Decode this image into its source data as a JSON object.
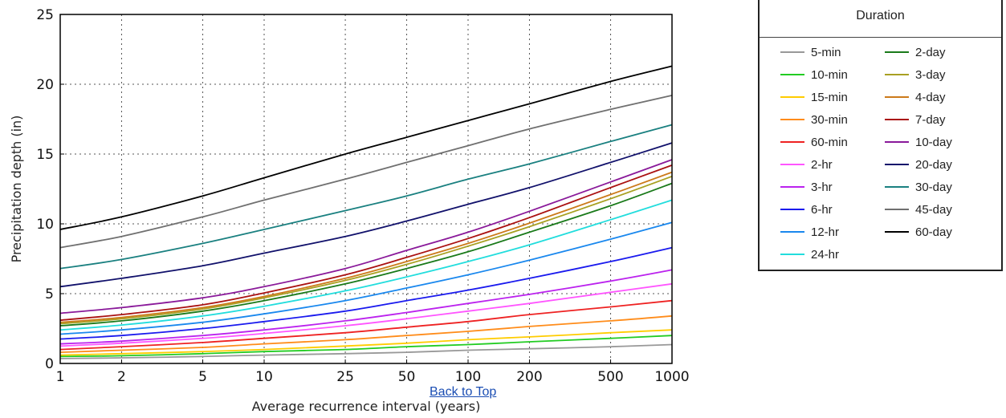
{
  "link": {
    "back_to_top": "Back to Top"
  },
  "legend": {
    "title": "Duration"
  },
  "chart_data": {
    "type": "line",
    "xlabel": "Average recurrence interval (years)",
    "ylabel": "Precipitation depth (in)",
    "x_scale": "log",
    "grid": true,
    "xlim": [
      1,
      1000
    ],
    "ylim": [
      0,
      25
    ],
    "x": [
      1,
      2,
      5,
      10,
      25,
      50,
      100,
      200,
      500,
      1000
    ],
    "x_tick_labels": [
      "1",
      "2",
      "5",
      "10",
      "25",
      "50",
      "100",
      "200",
      "500",
      "1000"
    ],
    "y_ticks": [
      0,
      5,
      10,
      15,
      20,
      25
    ],
    "legend_placement": "right, outside plot",
    "series": [
      {
        "name": "5-min",
        "color": "#999999",
        "values": [
          0.35,
          0.4,
          0.5,
          0.6,
          0.7,
          0.8,
          0.95,
          1.05,
          1.2,
          1.35
        ]
      },
      {
        "name": "10-min",
        "color": "#22cc22",
        "values": [
          0.5,
          0.55,
          0.7,
          0.85,
          1.0,
          1.2,
          1.35,
          1.55,
          1.8,
          2.0
        ]
      },
      {
        "name": "15-min",
        "color": "#ffcc00",
        "values": [
          0.6,
          0.7,
          0.85,
          1.0,
          1.25,
          1.45,
          1.7,
          1.9,
          2.2,
          2.4
        ]
      },
      {
        "name": "30-min",
        "color": "#ff8c1a",
        "values": [
          0.8,
          0.95,
          1.15,
          1.4,
          1.7,
          2.0,
          2.3,
          2.65,
          3.05,
          3.4
        ]
      },
      {
        "name": "60-min",
        "color": "#ee2222",
        "values": [
          1.0,
          1.2,
          1.5,
          1.8,
          2.2,
          2.6,
          3.0,
          3.5,
          4.05,
          4.5
        ]
      },
      {
        "name": "2-hr",
        "color": "#ff55ff",
        "values": [
          1.25,
          1.45,
          1.8,
          2.15,
          2.7,
          3.2,
          3.75,
          4.3,
          5.1,
          5.7
        ]
      },
      {
        "name": "3-hr",
        "color": "#bb22ee",
        "values": [
          1.4,
          1.6,
          2.0,
          2.4,
          3.05,
          3.65,
          4.3,
          4.95,
          5.9,
          6.7
        ]
      },
      {
        "name": "6-hr",
        "color": "#1a1aee",
        "values": [
          1.75,
          2.0,
          2.5,
          3.0,
          3.75,
          4.5,
          5.25,
          6.1,
          7.3,
          8.3
        ]
      },
      {
        "name": "12-hr",
        "color": "#1a88ee",
        "values": [
          2.1,
          2.4,
          2.95,
          3.55,
          4.5,
          5.4,
          6.35,
          7.4,
          8.9,
          10.1
        ]
      },
      {
        "name": "24-hr",
        "color": "#22dddd",
        "values": [
          2.4,
          2.75,
          3.4,
          4.1,
          5.2,
          6.2,
          7.3,
          8.5,
          10.3,
          11.7
        ]
      },
      {
        "name": "2-day",
        "color": "#1a7a1a",
        "values": [
          2.7,
          3.05,
          3.75,
          4.5,
          5.7,
          6.8,
          8.0,
          9.4,
          11.3,
          12.9
        ]
      },
      {
        "name": "3-day",
        "color": "#a8a022",
        "values": [
          2.85,
          3.2,
          3.9,
          4.7,
          5.95,
          7.1,
          8.4,
          9.8,
          11.8,
          13.4
        ]
      },
      {
        "name": "4-day",
        "color": "#cc7a1a",
        "values": [
          2.95,
          3.3,
          4.0,
          4.8,
          6.1,
          7.3,
          8.6,
          10.05,
          12.1,
          13.7
        ]
      },
      {
        "name": "7-day",
        "color": "#aa1111",
        "values": [
          3.1,
          3.5,
          4.2,
          5.05,
          6.35,
          7.6,
          8.95,
          10.45,
          12.6,
          14.2
        ]
      },
      {
        "name": "10-day",
        "color": "#8a1a9a",
        "values": [
          3.6,
          4.0,
          4.7,
          5.5,
          6.8,
          8.1,
          9.4,
          10.9,
          13.0,
          14.6
        ]
      },
      {
        "name": "20-day",
        "color": "#11116b",
        "values": [
          5.5,
          6.1,
          7.0,
          7.9,
          9.1,
          10.2,
          11.4,
          12.6,
          14.4,
          15.8
        ]
      },
      {
        "name": "30-day",
        "color": "#1a8080",
        "values": [
          6.8,
          7.45,
          8.6,
          9.6,
          10.95,
          12.0,
          13.2,
          14.3,
          15.9,
          17.1
        ]
      },
      {
        "name": "45-day",
        "color": "#707070",
        "values": [
          8.3,
          9.1,
          10.5,
          11.7,
          13.2,
          14.4,
          15.6,
          16.8,
          18.2,
          19.2
        ]
      },
      {
        "name": "60-day",
        "color": "#000000",
        "values": [
          9.6,
          10.5,
          12.0,
          13.3,
          15.0,
          16.2,
          17.4,
          18.6,
          20.2,
          21.3
        ]
      }
    ]
  }
}
